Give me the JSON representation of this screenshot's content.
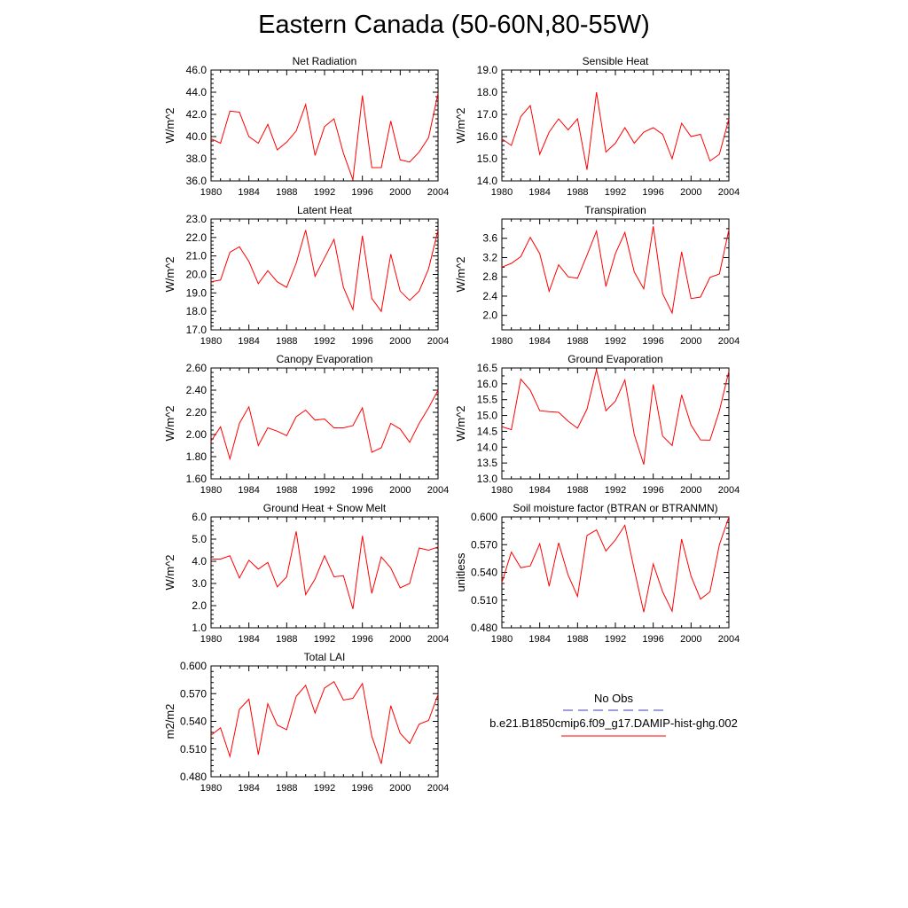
{
  "title": "Eastern Canada (50-60N,80-55W)",
  "colors": {
    "model": "#ff0000",
    "obs": "#3d3dbf",
    "axis": "#000000"
  },
  "legend": {
    "obs_label": "No Obs",
    "model_label": "b.e21.B1850cmip6.f09_g17.DAMIP-hist-ghg.002"
  },
  "chart_data": [
    {
      "type": "line",
      "title": "Net Radiation",
      "ylabel": "W/m^2",
      "xlim": [
        1980,
        2004
      ],
      "ylim": [
        36.0,
        46.0
      ],
      "xticks": [
        1980,
        1984,
        1988,
        1992,
        1996,
        2000,
        2004
      ],
      "yticks": [
        36.0,
        38.0,
        40.0,
        42.0,
        44.0,
        46.0
      ],
      "ytick_labels": [
        "36.0",
        "38.0",
        "40.0",
        "42.0",
        "44.0",
        "46.0"
      ],
      "yminor": [
        36.4,
        36.8,
        37.2,
        37.6,
        38.4,
        38.8,
        39.2,
        39.6,
        40.4,
        40.8,
        41.2,
        41.6,
        42.4,
        42.8,
        43.2,
        43.6,
        44.4,
        44.8,
        45.2,
        45.6
      ],
      "series": [
        {
          "x": [
            1980,
            1981,
            1982,
            1983,
            1984,
            1985,
            1986,
            1987,
            1988,
            1989,
            1990,
            1991,
            1992,
            1993,
            1994,
            1995,
            1996,
            1997,
            1998,
            1999,
            2000,
            2001,
            2002,
            2003,
            2004
          ],
          "values": [
            39.8,
            39.4,
            42.3,
            42.2,
            40.0,
            39.4,
            41.1,
            38.8,
            39.5,
            40.5,
            42.9,
            38.3,
            40.9,
            41.6,
            38.5,
            36.1,
            43.7,
            37.2,
            37.2,
            41.4,
            37.9,
            37.7,
            38.6,
            39.9,
            43.9
          ]
        }
      ]
    },
    {
      "type": "line",
      "title": "Sensible Heat",
      "ylabel": "W/m^2",
      "xlim": [
        1980,
        2004
      ],
      "ylim": [
        14.0,
        19.0
      ],
      "xticks": [
        1980,
        1984,
        1988,
        1992,
        1996,
        2000,
        2004
      ],
      "yticks": [
        14.0,
        15.0,
        16.0,
        17.0,
        18.0,
        19.0
      ],
      "ytick_labels": [
        "14.0",
        "15.0",
        "16.0",
        "17.0",
        "18.0",
        "19.0"
      ],
      "yminor": [
        14.2,
        14.4,
        14.6,
        14.8,
        15.2,
        15.4,
        15.6,
        15.8,
        16.2,
        16.4,
        16.6,
        16.8,
        17.2,
        17.4,
        17.6,
        17.8,
        18.2,
        18.4,
        18.6,
        18.8
      ],
      "series": [
        {
          "x": [
            1980,
            1981,
            1982,
            1983,
            1984,
            1985,
            1986,
            1987,
            1988,
            1989,
            1990,
            1991,
            1992,
            1993,
            1994,
            1995,
            1996,
            1997,
            1998,
            1999,
            2000,
            2001,
            2002,
            2003,
            2004
          ],
          "values": [
            15.9,
            15.6,
            16.9,
            17.4,
            15.2,
            16.2,
            16.8,
            16.3,
            16.8,
            14.5,
            18.0,
            15.3,
            15.7,
            16.4,
            15.7,
            16.2,
            16.4,
            16.1,
            15.0,
            16.6,
            16.0,
            16.1,
            14.9,
            15.2,
            16.8
          ]
        }
      ]
    },
    {
      "type": "line",
      "title": "Latent Heat",
      "ylabel": "W/m^2",
      "xlim": [
        1980,
        2004
      ],
      "ylim": [
        17.0,
        23.0
      ],
      "xticks": [
        1980,
        1984,
        1988,
        1992,
        1996,
        2000,
        2004
      ],
      "yticks": [
        17.0,
        18.0,
        19.0,
        20.0,
        21.0,
        22.0,
        23.0
      ],
      "ytick_labels": [
        "17.0",
        "18.0",
        "19.0",
        "20.0",
        "21.0",
        "22.0",
        "23.0"
      ],
      "yminor": [
        17.2,
        17.4,
        17.6,
        17.8,
        18.2,
        18.4,
        18.6,
        18.8,
        19.2,
        19.4,
        19.6,
        19.8,
        20.2,
        20.4,
        20.6,
        20.8,
        21.2,
        21.4,
        21.6,
        21.8,
        22.2,
        22.4,
        22.6,
        22.8
      ],
      "series": [
        {
          "x": [
            1980,
            1981,
            1982,
            1983,
            1984,
            1985,
            1986,
            1987,
            1988,
            1989,
            1990,
            1991,
            1992,
            1993,
            1994,
            1995,
            1996,
            1997,
            1998,
            1999,
            2000,
            2001,
            2002,
            2003,
            2004
          ],
          "values": [
            19.6,
            19.7,
            21.2,
            21.5,
            20.7,
            19.5,
            20.2,
            19.6,
            19.3,
            20.6,
            22.4,
            19.9,
            20.9,
            21.9,
            19.3,
            18.1,
            22.1,
            18.7,
            18.0,
            21.1,
            19.1,
            18.6,
            19.1,
            20.3,
            22.4
          ]
        }
      ]
    },
    {
      "type": "line",
      "title": "Transpiration",
      "ylabel": "W/m^2",
      "xlim": [
        1980,
        2004
      ],
      "ylim": [
        1.7,
        4.0
      ],
      "xticks": [
        1980,
        1984,
        1988,
        1992,
        1996,
        2000,
        2004
      ],
      "yticks": [
        2.0,
        2.4,
        2.8,
        3.2,
        3.6
      ],
      "ytick_labels": [
        "2.0",
        "2.4",
        "2.8",
        "3.2",
        "3.6"
      ],
      "yminor": [
        1.8,
        2.2,
        2.6,
        3.0,
        3.4,
        3.8
      ],
      "series": [
        {
          "x": [
            1980,
            1981,
            1982,
            1983,
            1984,
            1985,
            1986,
            1987,
            1988,
            1989,
            1990,
            1991,
            1992,
            1993,
            1994,
            1995,
            1996,
            1997,
            1998,
            1999,
            2000,
            2001,
            2002,
            2003,
            2004
          ],
          "values": [
            3.0,
            3.08,
            3.22,
            3.62,
            3.28,
            2.5,
            3.05,
            2.8,
            2.77,
            3.25,
            3.75,
            2.6,
            3.28,
            3.72,
            2.9,
            2.55,
            3.85,
            2.45,
            2.05,
            3.32,
            2.35,
            2.38,
            2.79,
            2.86,
            3.78
          ]
        }
      ]
    },
    {
      "type": "line",
      "title": "Canopy Evaporation",
      "ylabel": "W/m^2",
      "xlim": [
        1980,
        2004
      ],
      "ylim": [
        1.6,
        2.6
      ],
      "xticks": [
        1980,
        1984,
        1988,
        1992,
        1996,
        2000,
        2004
      ],
      "yticks": [
        1.6,
        1.8,
        2.0,
        2.2,
        2.4,
        2.6
      ],
      "ytick_labels": [
        "1.60",
        "1.80",
        "2.00",
        "2.20",
        "2.40",
        "2.60"
      ],
      "yminor": [
        1.64,
        1.68,
        1.72,
        1.76,
        1.84,
        1.88,
        1.92,
        1.96,
        2.04,
        2.08,
        2.12,
        2.16,
        2.24,
        2.28,
        2.32,
        2.36,
        2.44,
        2.48,
        2.52,
        2.56
      ],
      "series": [
        {
          "x": [
            1980,
            1981,
            1982,
            1983,
            1984,
            1985,
            1986,
            1987,
            1988,
            1989,
            1990,
            1991,
            1992,
            1993,
            1994,
            1995,
            1996,
            1997,
            1998,
            1999,
            2000,
            2001,
            2002,
            2003,
            2004
          ],
          "values": [
            1.94,
            2.07,
            1.78,
            2.1,
            2.25,
            1.9,
            2.06,
            2.03,
            1.99,
            2.16,
            2.22,
            2.13,
            2.14,
            2.06,
            2.06,
            2.08,
            2.24,
            1.84,
            1.88,
            2.1,
            2.05,
            1.93,
            2.1,
            2.24,
            2.4
          ]
        }
      ]
    },
    {
      "type": "line",
      "title": "Ground Evaporation",
      "ylabel": "W/m^2",
      "xlim": [
        1980,
        2004
      ],
      "ylim": [
        13.0,
        16.5
      ],
      "xticks": [
        1980,
        1984,
        1988,
        1992,
        1996,
        2000,
        2004
      ],
      "yticks": [
        13.0,
        13.5,
        14.0,
        14.5,
        15.0,
        15.5,
        16.0,
        16.5
      ],
      "ytick_labels": [
        "13.0",
        "13.5",
        "14.0",
        "14.5",
        "15.0",
        "15.5",
        "16.0",
        "16.5"
      ],
      "yminor": [
        13.25,
        13.75,
        14.25,
        14.75,
        15.25,
        15.75,
        16.25
      ],
      "series": [
        {
          "x": [
            1980,
            1981,
            1982,
            1983,
            1984,
            1985,
            1986,
            1987,
            1988,
            1989,
            1990,
            1991,
            1992,
            1993,
            1994,
            1995,
            1996,
            1997,
            1998,
            1999,
            2000,
            2001,
            2002,
            2003,
            2004
          ],
          "values": [
            14.65,
            14.55,
            16.15,
            15.8,
            15.15,
            15.12,
            15.1,
            14.82,
            14.6,
            15.2,
            16.45,
            15.15,
            15.45,
            16.12,
            14.4,
            13.45,
            15.98,
            14.35,
            14.05,
            15.65,
            14.7,
            14.23,
            14.22,
            15.15,
            16.4
          ]
        }
      ]
    },
    {
      "type": "line",
      "title": "Ground Heat + Snow Melt",
      "ylabel": "W/m^2",
      "xlim": [
        1980,
        2004
      ],
      "ylim": [
        1.0,
        6.0
      ],
      "xticks": [
        1980,
        1984,
        1988,
        1992,
        1996,
        2000,
        2004
      ],
      "yticks": [
        1.0,
        2.0,
        3.0,
        4.0,
        5.0,
        6.0
      ],
      "ytick_labels": [
        "1.0",
        "2.0",
        "3.0",
        "4.0",
        "5.0",
        "6.0"
      ],
      "yminor": [
        1.2,
        1.4,
        1.6,
        1.8,
        2.2,
        2.4,
        2.6,
        2.8,
        3.2,
        3.4,
        3.6,
        3.8,
        4.2,
        4.4,
        4.6,
        4.8,
        5.2,
        5.4,
        5.6,
        5.8
      ],
      "series": [
        {
          "x": [
            1980,
            1981,
            1982,
            1983,
            1984,
            1985,
            1986,
            1987,
            1988,
            1989,
            1990,
            1991,
            1992,
            1993,
            1994,
            1995,
            1996,
            1997,
            1998,
            1999,
            2000,
            2001,
            2002,
            2003,
            2004
          ],
          "values": [
            4.1,
            4.1,
            4.25,
            3.25,
            4.05,
            3.65,
            3.95,
            2.85,
            3.3,
            5.35,
            2.5,
            3.2,
            4.25,
            3.3,
            3.35,
            1.85,
            5.15,
            2.55,
            4.2,
            3.7,
            2.8,
            3.0,
            4.6,
            4.5,
            4.65
          ]
        }
      ]
    },
    {
      "type": "line",
      "title": "Soil moisture factor (BTRAN or BTRANMN)",
      "ylabel": "unitless",
      "xlim": [
        1980,
        2004
      ],
      "ylim": [
        0.48,
        0.6
      ],
      "xticks": [
        1980,
        1984,
        1988,
        1992,
        1996,
        2000,
        2004
      ],
      "yticks": [
        0.48,
        0.51,
        0.54,
        0.57,
        0.6
      ],
      "ytick_labels": [
        "0.480",
        "0.510",
        "0.540",
        "0.570",
        "0.600"
      ],
      "yminor": [
        0.486,
        0.492,
        0.498,
        0.504,
        0.516,
        0.522,
        0.528,
        0.534,
        0.546,
        0.552,
        0.558,
        0.564,
        0.576,
        0.582,
        0.588,
        0.594
      ],
      "series": [
        {
          "x": [
            1980,
            1981,
            1982,
            1983,
            1984,
            1985,
            1986,
            1987,
            1988,
            1989,
            1990,
            1991,
            1992,
            1993,
            1994,
            1995,
            1996,
            1997,
            1998,
            1999,
            2000,
            2001,
            2002,
            2003,
            2004
          ],
          "values": [
            0.529,
            0.562,
            0.545,
            0.547,
            0.571,
            0.525,
            0.572,
            0.537,
            0.514,
            0.58,
            0.586,
            0.563,
            0.575,
            0.591,
            0.543,
            0.497,
            0.549,
            0.519,
            0.498,
            0.576,
            0.536,
            0.511,
            0.519,
            0.57,
            0.6
          ]
        }
      ]
    },
    {
      "type": "line",
      "title": "Total LAI",
      "ylabel": "m2/m2",
      "xlim": [
        1980,
        2004
      ],
      "ylim": [
        0.48,
        0.6
      ],
      "xticks": [
        1980,
        1984,
        1988,
        1992,
        1996,
        2000,
        2004
      ],
      "yticks": [
        0.48,
        0.51,
        0.54,
        0.57,
        0.6
      ],
      "ytick_labels": [
        "0.480",
        "0.510",
        "0.540",
        "0.570",
        "0.600"
      ],
      "yminor": [
        0.486,
        0.492,
        0.498,
        0.504,
        0.516,
        0.522,
        0.528,
        0.534,
        0.546,
        0.552,
        0.558,
        0.564,
        0.576,
        0.582,
        0.588,
        0.594
      ],
      "series": [
        {
          "x": [
            1980,
            1981,
            1982,
            1983,
            1984,
            1985,
            1986,
            1987,
            1988,
            1989,
            1990,
            1991,
            1992,
            1993,
            1994,
            1995,
            1996,
            1997,
            1998,
            1999,
            2000,
            2001,
            2002,
            2003,
            2004
          ],
          "values": [
            0.525,
            0.533,
            0.502,
            0.553,
            0.564,
            0.504,
            0.559,
            0.536,
            0.531,
            0.567,
            0.579,
            0.549,
            0.576,
            0.583,
            0.563,
            0.565,
            0.581,
            0.524,
            0.494,
            0.557,
            0.527,
            0.516,
            0.537,
            0.541,
            0.569
          ]
        }
      ]
    }
  ]
}
